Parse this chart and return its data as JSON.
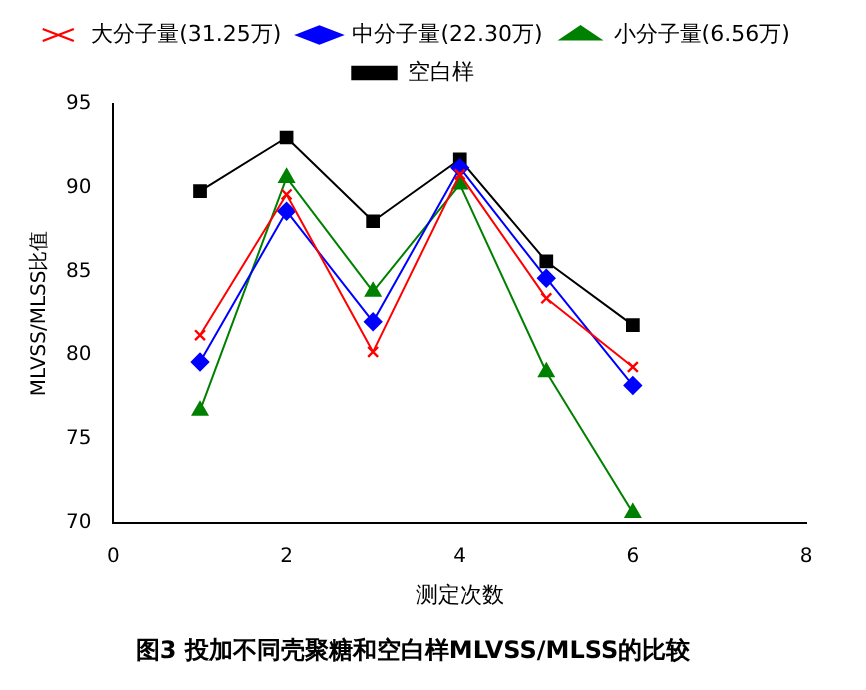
{
  "chart_data": {
    "type": "line",
    "title": "图3 投加不同壳聚糖和空白样MLVSS/MLSS的比较",
    "xlabel": "测定次数",
    "ylabel": "MLVSS/MLSS比值",
    "x": [
      1,
      2,
      3,
      4,
      5,
      6
    ],
    "series": [
      {
        "name": "大分子量(31.25万)",
        "color": "#ff0000",
        "marker": "cross",
        "values": [
          81.2,
          89.6,
          80.2,
          90.8,
          83.4,
          79.3
        ]
      },
      {
        "name": "中分子量(22.30万)",
        "color": "#0000ff",
        "marker": "diamond",
        "values": [
          79.6,
          88.6,
          82.0,
          91.2,
          84.6,
          78.2
        ]
      },
      {
        "name": "小分子量(6.56万)",
        "color": "#008000",
        "marker": "triangle",
        "values": [
          76.7,
          90.6,
          83.8,
          90.2,
          79.0,
          70.6
        ]
      },
      {
        "name": "空白样",
        "color": "#000000",
        "marker": "square",
        "values": [
          89.8,
          93.0,
          88.0,
          91.7,
          85.6,
          81.8
        ]
      }
    ],
    "xlim": [
      0,
      8
    ],
    "xticks": [
      0,
      2,
      4,
      6,
      8
    ],
    "ylim": [
      70,
      95
    ],
    "yticks": [
      70,
      75,
      80,
      85,
      90,
      95
    ],
    "grid": false,
    "legend": "top",
    "line_style": "solid"
  }
}
